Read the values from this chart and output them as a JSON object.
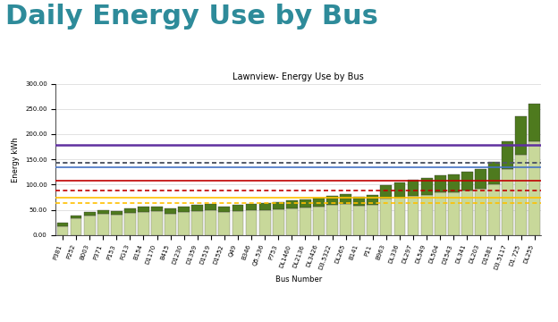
{
  "title": "Daily Energy Use by Bus",
  "subtitle": "Lawnview- Energy Use by Bus",
  "xlabel": "Bus Number",
  "ylabel": "Energy kWh",
  "ylim": [
    0,
    300
  ],
  "yticks": [
    0,
    50,
    100,
    150,
    200,
    250,
    300
  ],
  "bus_labels": [
    "P381",
    "P252",
    "B003",
    "P371",
    "P153",
    "FG13",
    "B154",
    "D1170",
    "B415",
    "D1230",
    "D1359",
    "D1519",
    "D1552",
    "Q49",
    "B346",
    "Q5.536",
    "P753",
    "DL1460",
    "DL2136",
    "DL3426",
    "D3.5322",
    "DL265",
    "B141",
    "P11",
    "B963",
    "DL336",
    "DL297",
    "DL549",
    "DL504",
    "D1543",
    "DL341",
    "DL203",
    "D1581",
    "D3.5117",
    "D1.725",
    "DL255"
  ],
  "nominal_values": [
    18,
    33,
    38,
    42,
    40,
    44,
    46,
    47,
    43,
    46,
    48,
    49,
    45,
    47,
    49,
    50,
    51,
    52,
    54,
    57,
    60,
    62,
    58,
    60,
    72,
    75,
    78,
    80,
    84,
    85,
    88,
    92,
    100,
    130,
    160,
    185
  ],
  "strenuous_values": [
    6,
    6,
    7,
    7,
    8,
    9,
    10,
    10,
    9,
    10,
    12,
    13,
    12,
    13,
    13,
    14,
    15,
    16,
    16,
    17,
    18,
    20,
    18,
    20,
    27,
    30,
    32,
    33,
    35,
    36,
    38,
    38,
    45,
    55,
    75,
    75
  ],
  "line_88_nameplate": 75,
  "line_88_degraded": 63,
  "line_127_nameplate": 107,
  "line_127_degraded": 88,
  "line_160_nameplate": 135,
  "line_160_degraded": 144,
  "line_210_nameplate": 178,
  "line_210_degraded_dotted": 144,
  "color_nominal": "#c8d89a",
  "color_strenuous": "#4e7a1e",
  "color_88_nameplate": "#ffc000",
  "color_88_degraded": "#ffc000",
  "color_127_nameplate": "#c00000",
  "color_127_degraded": "#c00000",
  "color_160_nameplate": "#4472c4",
  "color_160_degraded": "#4472c4",
  "color_210_nameplate": "#6030a0",
  "color_210_degraded": "#555555",
  "title_color": "#2e8b9a",
  "background_color": "#ffffff",
  "title_fontsize": 22,
  "subtitle_fontsize": 7,
  "ylabel_fontsize": 6,
  "xlabel_fontsize": 6,
  "tick_fontsize": 5,
  "legend_fontsize": 5
}
